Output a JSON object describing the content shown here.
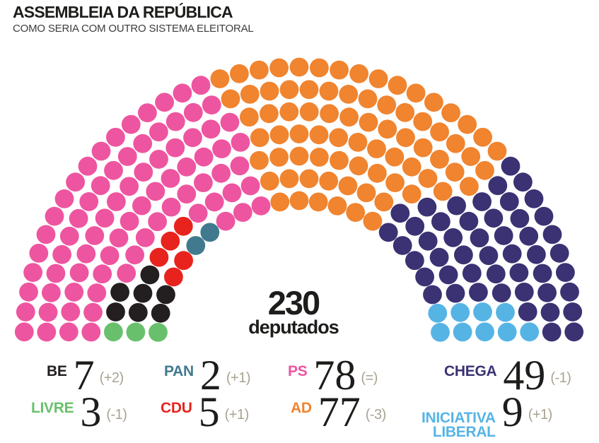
{
  "header": {
    "title": "ASSEMBLEIA DA REPÚBLICA",
    "subtitle": "COMO SERIA COM OUTRO SISTEMA ELEITORAL"
  },
  "center": {
    "total": "230",
    "label": "deputados"
  },
  "chart_data": {
    "type": "parliament",
    "title": "ASSEMBLEIA DA REPÚBLICA",
    "subtitle": "COMO SERIA COM OUTRO SISTEMA ELEITORAL",
    "total_seats": 230,
    "center_label": "230 deputados",
    "legend_position": "bottom",
    "parties": [
      {
        "id": "BE",
        "name": "BE",
        "seats": 7,
        "change": "(+2)",
        "color": "#231f20"
      },
      {
        "id": "PAN",
        "name": "PAN",
        "seats": 2,
        "change": "(+1)",
        "color": "#417a8e"
      },
      {
        "id": "PS",
        "name": "PS",
        "seats": 78,
        "change": "(=)",
        "color": "#ee55a0"
      },
      {
        "id": "CHEGA",
        "name": "CHEGA",
        "seats": 49,
        "change": "(-1)",
        "color": "#3a3273"
      },
      {
        "id": "LIVRE",
        "name": "LIVRE",
        "seats": 3,
        "change": "(-1)",
        "color": "#68c06c"
      },
      {
        "id": "CDU",
        "name": "CDU",
        "seats": 5,
        "change": "(+1)",
        "color": "#e8231e"
      },
      {
        "id": "AD",
        "name": "AD",
        "seats": 77,
        "change": "(-3)",
        "color": "#f0842f"
      },
      {
        "id": "IL",
        "name": "INICIATIVA\nLIBERAL",
        "seats": 9,
        "change": "(+1)",
        "color": "#56b4e5"
      }
    ],
    "rings": [
      [
        {
          "party": "LIVRE",
          "seats": 1
        },
        {
          "party": "BE",
          "seats": 2
        },
        {
          "party": "CDU",
          "seats": 2
        },
        {
          "party": "PAN",
          "seats": 2
        },
        {
          "party": "PS",
          "seats": 3
        },
        {
          "party": "AD",
          "seats": 6
        },
        {
          "party": "CHEGA",
          "seats": 5
        },
        {
          "party": "IL",
          "seats": 2
        }
      ],
      [
        {
          "party": "LIVRE",
          "seats": 1
        },
        {
          "party": "BE",
          "seats": 3
        },
        {
          "party": "CDU",
          "seats": 3
        },
        {
          "party": "PS",
          "seats": 4
        },
        {
          "party": "AD",
          "seats": 7
        },
        {
          "party": "CHEGA",
          "seats": 6
        },
        {
          "party": "IL",
          "seats": 2
        }
      ],
      [
        {
          "party": "LIVRE",
          "seats": 1
        },
        {
          "party": "BE",
          "seats": 2
        },
        {
          "party": "PS",
          "seats": 9
        },
        {
          "party": "AD",
          "seats": 9
        },
        {
          "party": "CHEGA",
          "seats": 6
        },
        {
          "party": "IL",
          "seats": 2
        }
      ],
      [
        {
          "party": "PS",
          "seats": 14
        },
        {
          "party": "AD",
          "seats": 11
        },
        {
          "party": "CHEGA",
          "seats": 6
        },
        {
          "party": "IL",
          "seats": 2
        }
      ],
      [
        {
          "party": "PS",
          "seats": 15
        },
        {
          "party": "AD",
          "seats": 13
        },
        {
          "party": "CHEGA",
          "seats": 7
        },
        {
          "party": "IL",
          "seats": 1
        }
      ],
      [
        {
          "party": "PS",
          "seats": 16
        },
        {
          "party": "AD",
          "seats": 15
        },
        {
          "party": "CHEGA",
          "seats": 9
        }
      ],
      [
        {
          "party": "PS",
          "seats": 17
        },
        {
          "party": "AD",
          "seats": 16
        },
        {
          "party": "CHEGA",
          "seats": 10
        }
      ]
    ]
  },
  "legend": {
    "rows": [
      [
        "BE",
        "PAN",
        "PS",
        "CHEGA"
      ],
      [
        "LIVRE",
        "CDU",
        "AD",
        "IL"
      ]
    ]
  }
}
